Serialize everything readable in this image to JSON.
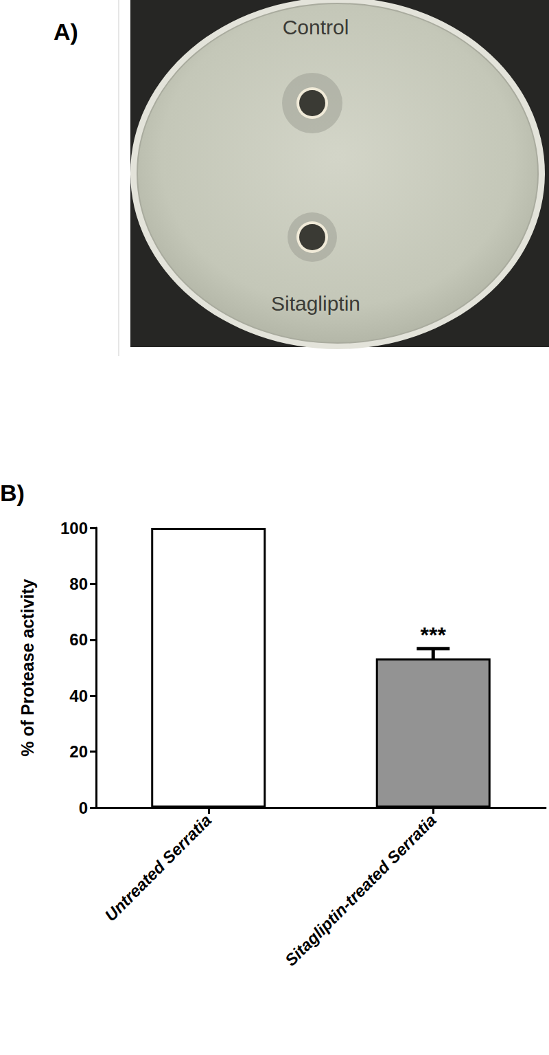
{
  "chart_data": {
    "type": "bar",
    "panel_label": "B)",
    "categories": [
      "Untreated Serratia",
      "Sitagliptin-treated Serratia"
    ],
    "values": [
      100,
      53.3
    ],
    "errors": [
      0,
      3.5
    ],
    "colors": [
      "#ffffff",
      "#939393"
    ],
    "ylabel": "% of Protease activity",
    "ylim": [
      0,
      100
    ],
    "yticks": [
      0,
      20,
      40,
      60,
      80,
      100
    ],
    "grid": false,
    "annotations": [
      {
        "text": "***",
        "category": "Sitagliptin-treated Serratia"
      }
    ]
  },
  "panel_a": {
    "label": "A)",
    "wells": [
      "Control",
      "Sitagliptin"
    ]
  }
}
